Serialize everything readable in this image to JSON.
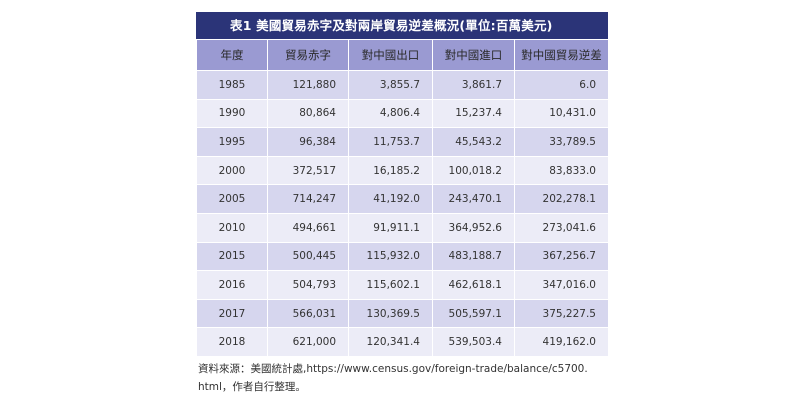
{
  "title": "表1 美國貿易赤字及對兩岸貿易逆差概況(單位:百萬美元)",
  "columns": [
    "年度",
    "貿易赤字",
    "對中國出口",
    "對中國進口",
    "對中國貿易逆差"
  ],
  "rows": [
    [
      "1985",
      "121,880",
      "3,855.7",
      "3,861.7",
      "6.0"
    ],
    [
      "1990",
      "80,864",
      "4,806.4",
      "15,237.4",
      "10,431.0"
    ],
    [
      "1995",
      "96,384",
      "11,753.7",
      "45,543.2",
      "33,789.5"
    ],
    [
      "2000",
      "372,517",
      "16,185.2",
      "100,018.2",
      "83,833.0"
    ],
    [
      "2005",
      "714,247",
      "41,192.0",
      "243,470.1",
      "202,278.1"
    ],
    [
      "2010",
      "494,661",
      "91,911.1",
      "364,952.6",
      "273,041.6"
    ],
    [
      "2015",
      "500,445",
      "115,932.0",
      "483,188.7",
      "367,256.7"
    ],
    [
      "2016",
      "504,793",
      "115,602.1",
      "462,618.1",
      "347,016.0"
    ],
    [
      "2017",
      "566,031",
      "130,369.5",
      "505,597.1",
      "375,227.5"
    ],
    [
      "2018",
      "621,000",
      "120,341.4",
      "539,503.4",
      "419,162.0"
    ]
  ],
  "source": {
    "line1": "資料來源：美國統計處,https://www.census.gov/foreign-trade/balance/c5700.",
    "line2": "html，作者自行整理。"
  },
  "colors": {
    "title_bg": "#2b3478",
    "header_bg": "#9a9ad2",
    "row_odd": "#d6d6ee",
    "row_even": "#ececf7"
  }
}
